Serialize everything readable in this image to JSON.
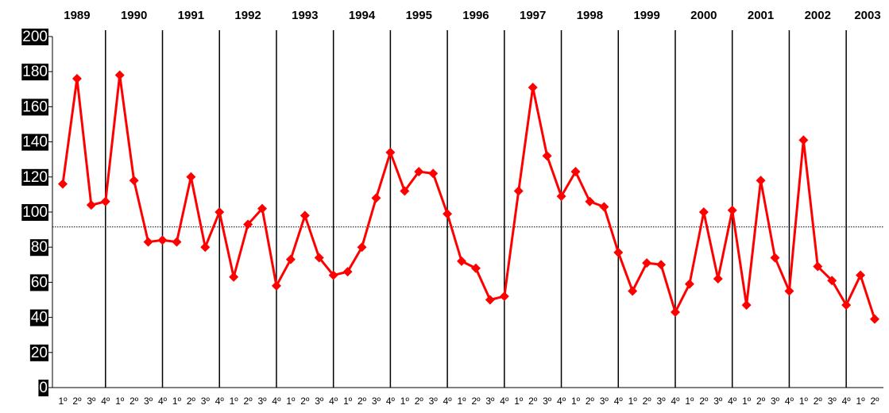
{
  "chart_data": {
    "type": "line",
    "years": [
      "1989",
      "1990",
      "1991",
      "1992",
      "1993",
      "1994",
      "1995",
      "1996",
      "1997",
      "1998",
      "1999",
      "2000",
      "2001",
      "2002",
      "2003"
    ],
    "categories": [
      "1º",
      "2º",
      "3º",
      "4º",
      "1º",
      "2º",
      "3º",
      "4º",
      "1º",
      "2º",
      "3º",
      "4º",
      "1º",
      "2º",
      "3º",
      "4º",
      "1º",
      "2º",
      "3º",
      "4º",
      "1º",
      "2º",
      "3º",
      "4º",
      "1º",
      "2º",
      "3º",
      "4º",
      "1º",
      "2º",
      "3º",
      "4º",
      "1º",
      "2º",
      "3º",
      "4º",
      "1º",
      "2º",
      "3º",
      "4º",
      "1º",
      "2º",
      "3º",
      "4º",
      "1º",
      "2º",
      "3º",
      "4º",
      "1º",
      "2º",
      "3º",
      "4º",
      "1º",
      "2º",
      "3º",
      "4º",
      "1º",
      "2º"
    ],
    "values": [
      116,
      176,
      104,
      106,
      178,
      118,
      83,
      84,
      83,
      120,
      80,
      100,
      63,
      93,
      102,
      58,
      73,
      98,
      74,
      64,
      66,
      80,
      108,
      134,
      112,
      123,
      122,
      99,
      72,
      68,
      50,
      52,
      112,
      171,
      132,
      109,
      123,
      106,
      103,
      77,
      55,
      71,
      70,
      43,
      59,
      100,
      62,
      101,
      47,
      118,
      74,
      55,
      141,
      69,
      61,
      47,
      64,
      39
    ],
    "color": "#ff0000",
    "reference_value": 91.5,
    "ylim": [
      0,
      200
    ],
    "yticks": [
      0,
      20,
      40,
      60,
      80,
      100,
      120,
      140,
      160,
      180,
      200
    ]
  }
}
